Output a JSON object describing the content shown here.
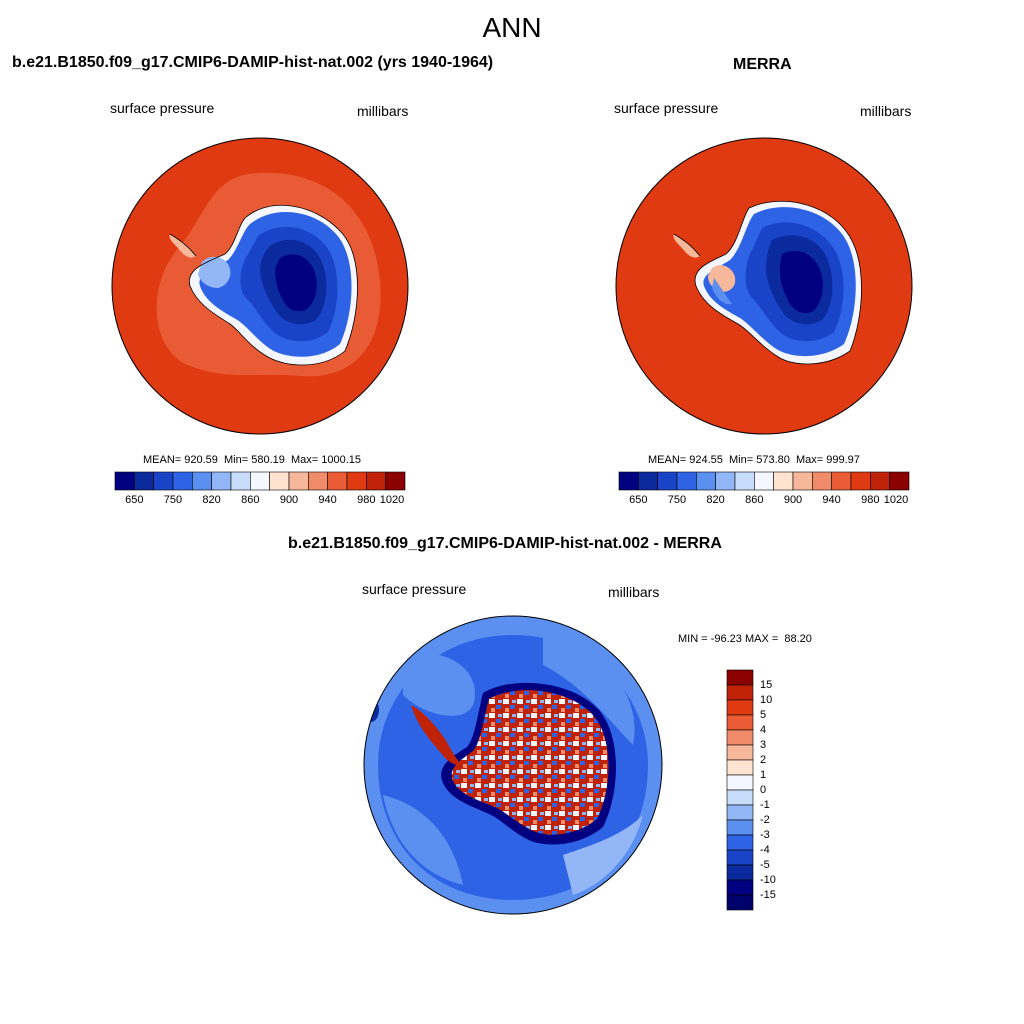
{
  "title": "ANN",
  "panels": [
    {
      "title": "b.e21.B1850.f09_g17.CMIP6-DAMIP-hist-nat.002 (yrs 1940-1964)",
      "left_label": "surface pressure",
      "right_label": "millibars",
      "stats": "MEAN= 920.59  Min= 580.19  Max= 1000.15",
      "mean": 920.59,
      "min": 580.19,
      "max": 1000.15
    },
    {
      "title": "MERRA",
      "left_label": "surface pressure",
      "right_label": "millibars",
      "stats": "MEAN= 924.55  Min= 573.80  Max= 999.97",
      "mean": 924.55,
      "min": 573.8,
      "max": 999.97
    },
    {
      "title": "b.e21.B1850.f09_g17.CMIP6-DAMIP-hist-nat.002 - MERRA",
      "left_label": "surface pressure",
      "right_label": "millibars",
      "stats": "MIN = -96.23 MAX =  88.20",
      "min": -96.23,
      "max": 88.2
    }
  ],
  "colorbar_abs": {
    "tick_labels": [
      "650",
      "750",
      "820",
      "860",
      "900",
      "940",
      "980",
      "1020"
    ],
    "colors": [
      "#000080",
      "#0a2a9e",
      "#1a44c8",
      "#2e63e6",
      "#5b8ff0",
      "#92b6f6",
      "#c8dcfb",
      "#f4f7ff",
      "#fde3d0",
      "#f7b79a",
      "#f08c6a",
      "#e95b34",
      "#df3a12",
      "#c02208",
      "#8b0000"
    ]
  },
  "colorbar_diff": {
    "tick_labels": [
      "15",
      "10",
      "5",
      "4",
      "3",
      "2",
      "1",
      "0",
      "-1",
      "-2",
      "-3",
      "-4",
      "-5",
      "-10",
      "-15"
    ],
    "colors": [
      "#8b0000",
      "#c02208",
      "#df3a12",
      "#e95b34",
      "#f08c6a",
      "#f7b79a",
      "#fde3d0",
      "#f4f7ff",
      "#c8dcfb",
      "#92b6f6",
      "#5b8ff0",
      "#2e63e6",
      "#1a44c8",
      "#0a2a9e",
      "#000080",
      "#00006a"
    ]
  }
}
